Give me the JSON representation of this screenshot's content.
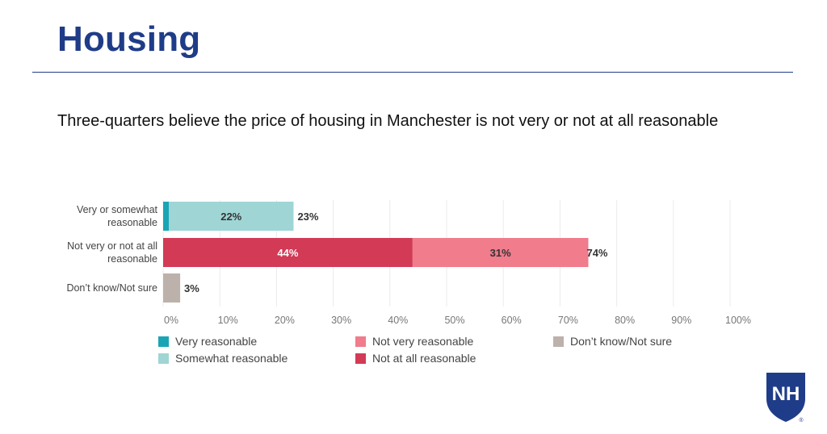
{
  "page": {
    "title": "Housing",
    "subtitle": "Three-quarters believe the price of housing in Manchester is not very or not at all reasonable"
  },
  "colors": {
    "title": "#1f3c88",
    "very_reasonable": "#1aa5b5",
    "somewhat_reasonable": "#9fd5d5",
    "not_very_reasonable": "#f07c8c",
    "not_at_all_reasonable": "#d23a56",
    "dont_know": "#bdb1ab",
    "grid": "#ebebeb",
    "logo": "#1f3c88"
  },
  "logo": {
    "icon": "unh-shield-icon",
    "text": "NH",
    "mark": "®"
  },
  "chart_data": {
    "type": "bar",
    "orientation": "horizontal",
    "stacked": true,
    "categories": [
      "Very or somewhat reasonable",
      "Not very or not at all reasonable",
      "Don't know/Not sure"
    ],
    "category_label_lines": [
      [
        "Very or somewhat",
        "reasonable"
      ],
      [
        "Not very or not at all",
        "reasonable"
      ],
      [
        "Don’t know/Not sure"
      ]
    ],
    "series": [
      {
        "name": "Very reasonable",
        "values": [
          1,
          0,
          0
        ],
        "color": "#1aa5b5",
        "labels": [
          "",
          "",
          ""
        ]
      },
      {
        "name": "Somewhat reasonable",
        "values": [
          22,
          0,
          0
        ],
        "color": "#9fd5d5",
        "labels": [
          "22%",
          "",
          ""
        ]
      },
      {
        "name": "Not at all reasonable",
        "values": [
          0,
          44,
          0
        ],
        "color": "#d23a56",
        "labels": [
          "",
          "44%",
          ""
        ]
      },
      {
        "name": "Not very reasonable",
        "values": [
          0,
          31,
          0
        ],
        "color": "#f07c8c",
        "labels": [
          "",
          "31%",
          ""
        ]
      },
      {
        "name": "Don’t know/Not sure",
        "values": [
          0,
          0,
          3
        ],
        "color": "#bdb1ab",
        "labels": [
          "",
          "",
          ""
        ]
      }
    ],
    "totals": [
      23,
      74,
      3
    ],
    "total_labels": [
      "23%",
      "74%",
      "3%"
    ],
    "xlim": [
      0,
      100
    ],
    "xticks": [
      0,
      10,
      20,
      30,
      40,
      50,
      60,
      70,
      80,
      90,
      100
    ],
    "xtick_labels": [
      "0%",
      "10%",
      "20%",
      "30%",
      "40%",
      "50%",
      "60%",
      "70%",
      "80%",
      "90%",
      "100%"
    ],
    "grid": "vertical",
    "legend": {
      "placement": "bottom",
      "items": [
        {
          "name": "Very reasonable",
          "color": "#1aa5b5"
        },
        {
          "name": "Somewhat reasonable",
          "color": "#9fd5d5"
        },
        {
          "name": "Not very reasonable",
          "color": "#f07c8c"
        },
        {
          "name": "Not at all reasonable",
          "color": "#d23a56"
        },
        {
          "name": "Don’t know/Not sure",
          "color": "#bdb1ab"
        }
      ]
    }
  }
}
